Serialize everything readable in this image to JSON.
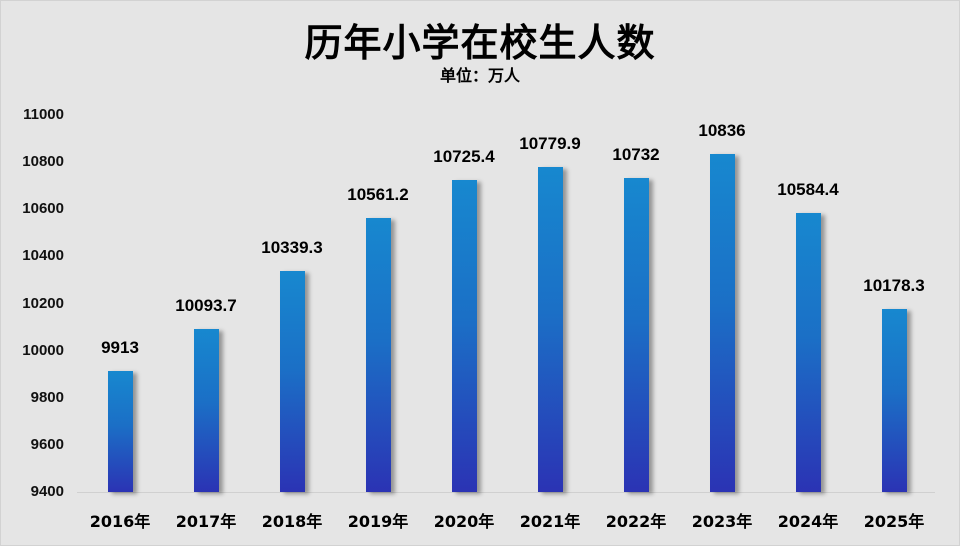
{
  "header": {
    "title": "历年小学在校生人数",
    "subtitle": "单位：万人"
  },
  "colors": {
    "background": "#e5e5e5",
    "bar_top": "#1788cf",
    "bar_bottom": "#2b33b4",
    "text": "#000000"
  },
  "chart_data": {
    "type": "bar",
    "title": "历年小学在校生人数",
    "subtitle": "单位：万人",
    "xlabel": "",
    "ylabel": "",
    "unit": "万人",
    "categories": [
      "2016年",
      "2017年",
      "2018年",
      "2019年",
      "2020年",
      "2021年",
      "2022年",
      "2023年",
      "2024年",
      "2025年"
    ],
    "values": [
      9913,
      10093.7,
      10339.3,
      10561.2,
      10725.4,
      10779.9,
      10732,
      10836,
      10584.4,
      10178.3
    ],
    "value_labels": [
      "9913",
      "10093.7",
      "10339.3",
      "10561.2",
      "10725.4",
      "10779.9",
      "10732",
      "10836",
      "10584.4",
      "10178.3"
    ],
    "ylim": [
      9400,
      11000
    ],
    "yticks": [
      "11000",
      "10800",
      "10600",
      "10400",
      "10200",
      "10000",
      "9800",
      "9600",
      "9400"
    ],
    "grid": false,
    "legend": "none",
    "data_labels": true
  }
}
